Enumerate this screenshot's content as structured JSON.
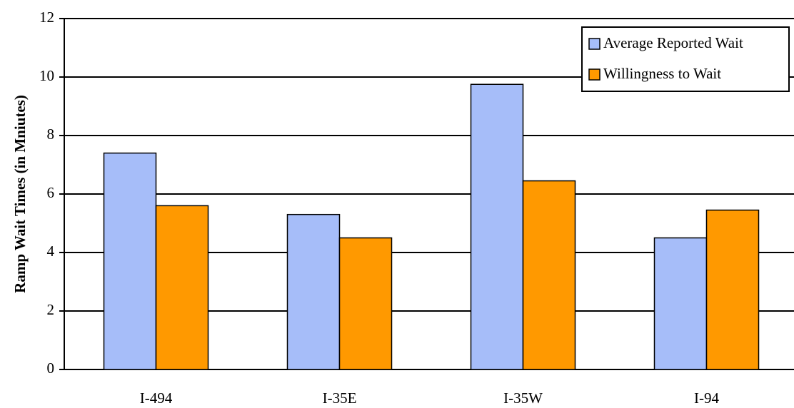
{
  "chart_data": {
    "type": "bar",
    "y_label": "Ramp Wait Times (in Mniutes)",
    "categories": [
      "I-494",
      "I-35E",
      "I-35W",
      "I-94"
    ],
    "series": [
      {
        "name": "Average Reported Wait",
        "color": "#a6bdf9",
        "values": [
          7.4,
          5.3,
          9.75,
          4.5
        ]
      },
      {
        "name": "Willingness to Wait",
        "color": "#ff9900",
        "values": [
          5.6,
          4.5,
          6.45,
          5.45
        ]
      }
    ],
    "ylim": [
      0,
      12
    ],
    "yticks": [
      0,
      2,
      4,
      6,
      8,
      10,
      12
    ],
    "grid": true,
    "legend": "top-right"
  }
}
